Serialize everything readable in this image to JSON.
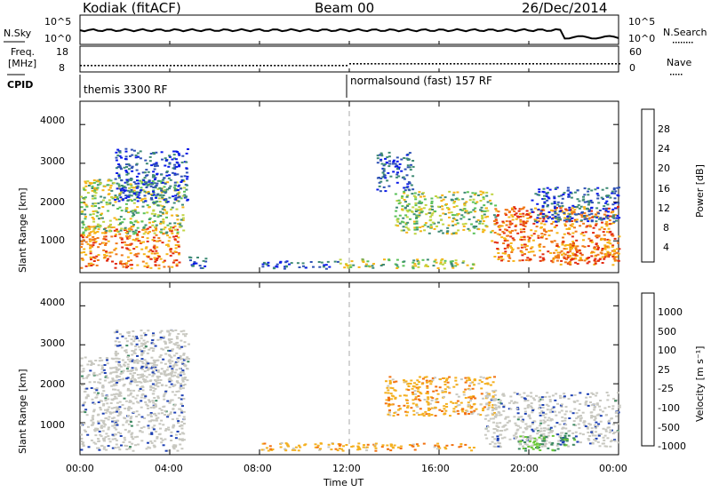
{
  "header": {
    "station": "Kodiak (fitACF)",
    "beam": "Beam 00",
    "date": "26/Dec/2014"
  },
  "noise_panel": {
    "left_label": "N.Sky",
    "left_ticks": [
      "10^5",
      "10^0"
    ],
    "right_ticks": [
      "10^5",
      "10^0"
    ],
    "right_label": "N.Search"
  },
  "freq_panel": {
    "left_label_line1": "Freq.",
    "left_label_line2": "[MHz]",
    "left_ticks": [
      "18",
      "8"
    ],
    "right_ticks": [
      "60",
      "0"
    ],
    "right_label": "Nave"
  },
  "cpid_panel": {
    "label": "CPID",
    "modes": [
      {
        "name": "themis 3300 RF",
        "start_hour": 0
      },
      {
        "name": "normalsound (fast) 157 RF",
        "start_hour": 12
      }
    ]
  },
  "power_panel": {
    "ylabel": "Slant Range [km]",
    "yticks": [
      "1000",
      "2000",
      "3000",
      "4000"
    ],
    "colorbar_label": "Power [dB]",
    "colorbar_ticks": [
      "28",
      "24",
      "20",
      "16",
      "12",
      "8",
      "4"
    ]
  },
  "velocity_panel": {
    "ylabel": "Slant Range [km]",
    "yticks": [
      "1000",
      "2000",
      "3000",
      "4000"
    ],
    "colorbar_label": "Velocity [m s⁻¹]",
    "colorbar_ticks": [
      "1000",
      "500",
      "100",
      "25",
      "-25",
      "-100",
      "-500",
      "-1000"
    ]
  },
  "time_axis": {
    "xlabel": "Time UT",
    "ticks": [
      "00:00",
      "04:00",
      "08:00",
      "12:00",
      "16:00",
      "20:00",
      "00:00"
    ]
  },
  "chart_data": {
    "type": "heatmap",
    "x_unit": "hour UT",
    "xlim": [
      0,
      24
    ],
    "ylim_km": [
      180,
      4600
    ],
    "power_colors": [
      "#0a1ae8",
      "#2f52b5",
      "#3f8b75",
      "#5ac15a",
      "#c0d442",
      "#f6b416",
      "#f07818",
      "#e22a10"
    ],
    "velocity_colors": [
      "#e11a10",
      "#f2700e",
      "#f4b020",
      "#c8c8c0",
      "#c8c8c0",
      "#6ac838",
      "#3e8a62",
      "#1c3fb3"
    ],
    "power_regions": [
      {
        "x0": 0.0,
        "x1": 4.4,
        "y0": 300,
        "y1": 1400,
        "level": "high"
      },
      {
        "x0": 0.0,
        "x1": 4.6,
        "y0": 1200,
        "y1": 2600,
        "level": "mid"
      },
      {
        "x0": 1.5,
        "x1": 4.8,
        "y0": 2000,
        "y1": 3400,
        "level": "low"
      },
      {
        "x0": 4.8,
        "x1": 5.8,
        "y0": 300,
        "y1": 600,
        "level": "low"
      },
      {
        "x0": 8.0,
        "x1": 11.5,
        "y0": 300,
        "y1": 500,
        "level": "low"
      },
      {
        "x0": 11.5,
        "x1": 17.5,
        "y0": 300,
        "y1": 550,
        "level": "mid"
      },
      {
        "x0": 13.2,
        "x1": 14.8,
        "y0": 2300,
        "y1": 3300,
        "level": "low"
      },
      {
        "x0": 14.0,
        "x1": 18.5,
        "y0": 1200,
        "y1": 2300,
        "level": "mid"
      },
      {
        "x0": 18.3,
        "x1": 24.0,
        "y0": 500,
        "y1": 1900,
        "level": "high"
      },
      {
        "x0": 21.0,
        "x1": 24.0,
        "y0": 400,
        "y1": 900,
        "level": "high"
      },
      {
        "x0": 20.0,
        "x1": 24.0,
        "y0": 1500,
        "y1": 2400,
        "level": "low"
      }
    ],
    "velocity_regions": [
      {
        "x0": 0.0,
        "x1": 4.6,
        "y0": 300,
        "y1": 2700,
        "level": "near_zero"
      },
      {
        "x0": 1.5,
        "x1": 4.8,
        "y0": 2000,
        "y1": 3400,
        "level": "near_zero"
      },
      {
        "x0": 13.5,
        "x1": 18.5,
        "y0": 1200,
        "y1": 2200,
        "level": "negative"
      },
      {
        "x0": 18.0,
        "x1": 24.0,
        "y0": 400,
        "y1": 1800,
        "level": "near_zero"
      },
      {
        "x0": 19.5,
        "x1": 22.0,
        "y0": 300,
        "y1": 700,
        "level": "positive"
      },
      {
        "x0": 8.0,
        "x1": 17.5,
        "y0": 300,
        "y1": 500,
        "level": "negative"
      }
    ]
  }
}
